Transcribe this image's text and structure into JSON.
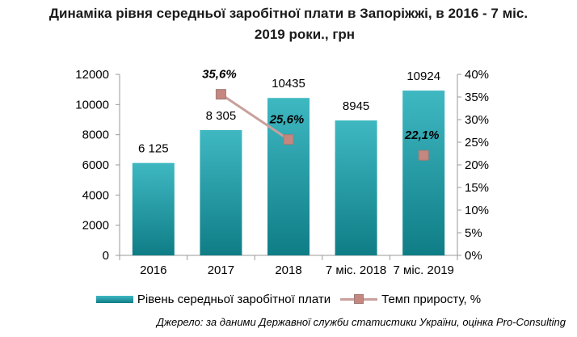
{
  "title_line1": "Динаміка рівня середньої заробітної плати в Запоріжжі, в 2016 - 7 міс.",
  "title_line2": "2019 роки., грн",
  "source": "Джерело: за даними Державної служби статистики України, оцінка Pro-Consulting",
  "colors": {
    "bar_top": "#3fb8c2",
    "bar_bottom": "#0f7d86",
    "line": "#c9a09c",
    "marker": "#c5877f",
    "axis": "#9a9a9a"
  },
  "chart_data": {
    "type": "bar",
    "categories": [
      "2016",
      "2017",
      "2018",
      "7 міс. 2018",
      "7 міс. 2019"
    ],
    "ylim": [
      0,
      12000
    ],
    "y_ticks": [
      "0",
      "2000",
      "4000",
      "6000",
      "8000",
      "10000",
      "12000"
    ],
    "y2lim": [
      0,
      40
    ],
    "y2_ticks": [
      "0%",
      "5%",
      "10%",
      "15%",
      "20%",
      "25%",
      "30%",
      "35%",
      "40%"
    ],
    "grid": false,
    "legend_position": "bottom",
    "series": [
      {
        "name": "Рівень середньої заробітної плати",
        "type": "bar",
        "axis": "left",
        "values": [
          6125,
          8305,
          10435,
          8945,
          10924
        ],
        "labels": [
          "6 125",
          "8 305",
          "10435",
          "8945",
          "10924"
        ]
      },
      {
        "name": "Темп приросту, %",
        "type": "line",
        "axis": "right",
        "segments": [
          {
            "points": [
              [
                1,
                35.6
              ],
              [
                2,
                25.6
              ]
            ]
          },
          {
            "points": [
              [
                4,
                22.1
              ]
            ]
          }
        ],
        "labels": [
          {
            "index": 1,
            "value": 35.6,
            "text": "35,6%"
          },
          {
            "index": 2,
            "value": 25.6,
            "text": "25,6%"
          },
          {
            "index": 4,
            "value": 22.1,
            "text": "22,1%"
          }
        ]
      }
    ]
  }
}
